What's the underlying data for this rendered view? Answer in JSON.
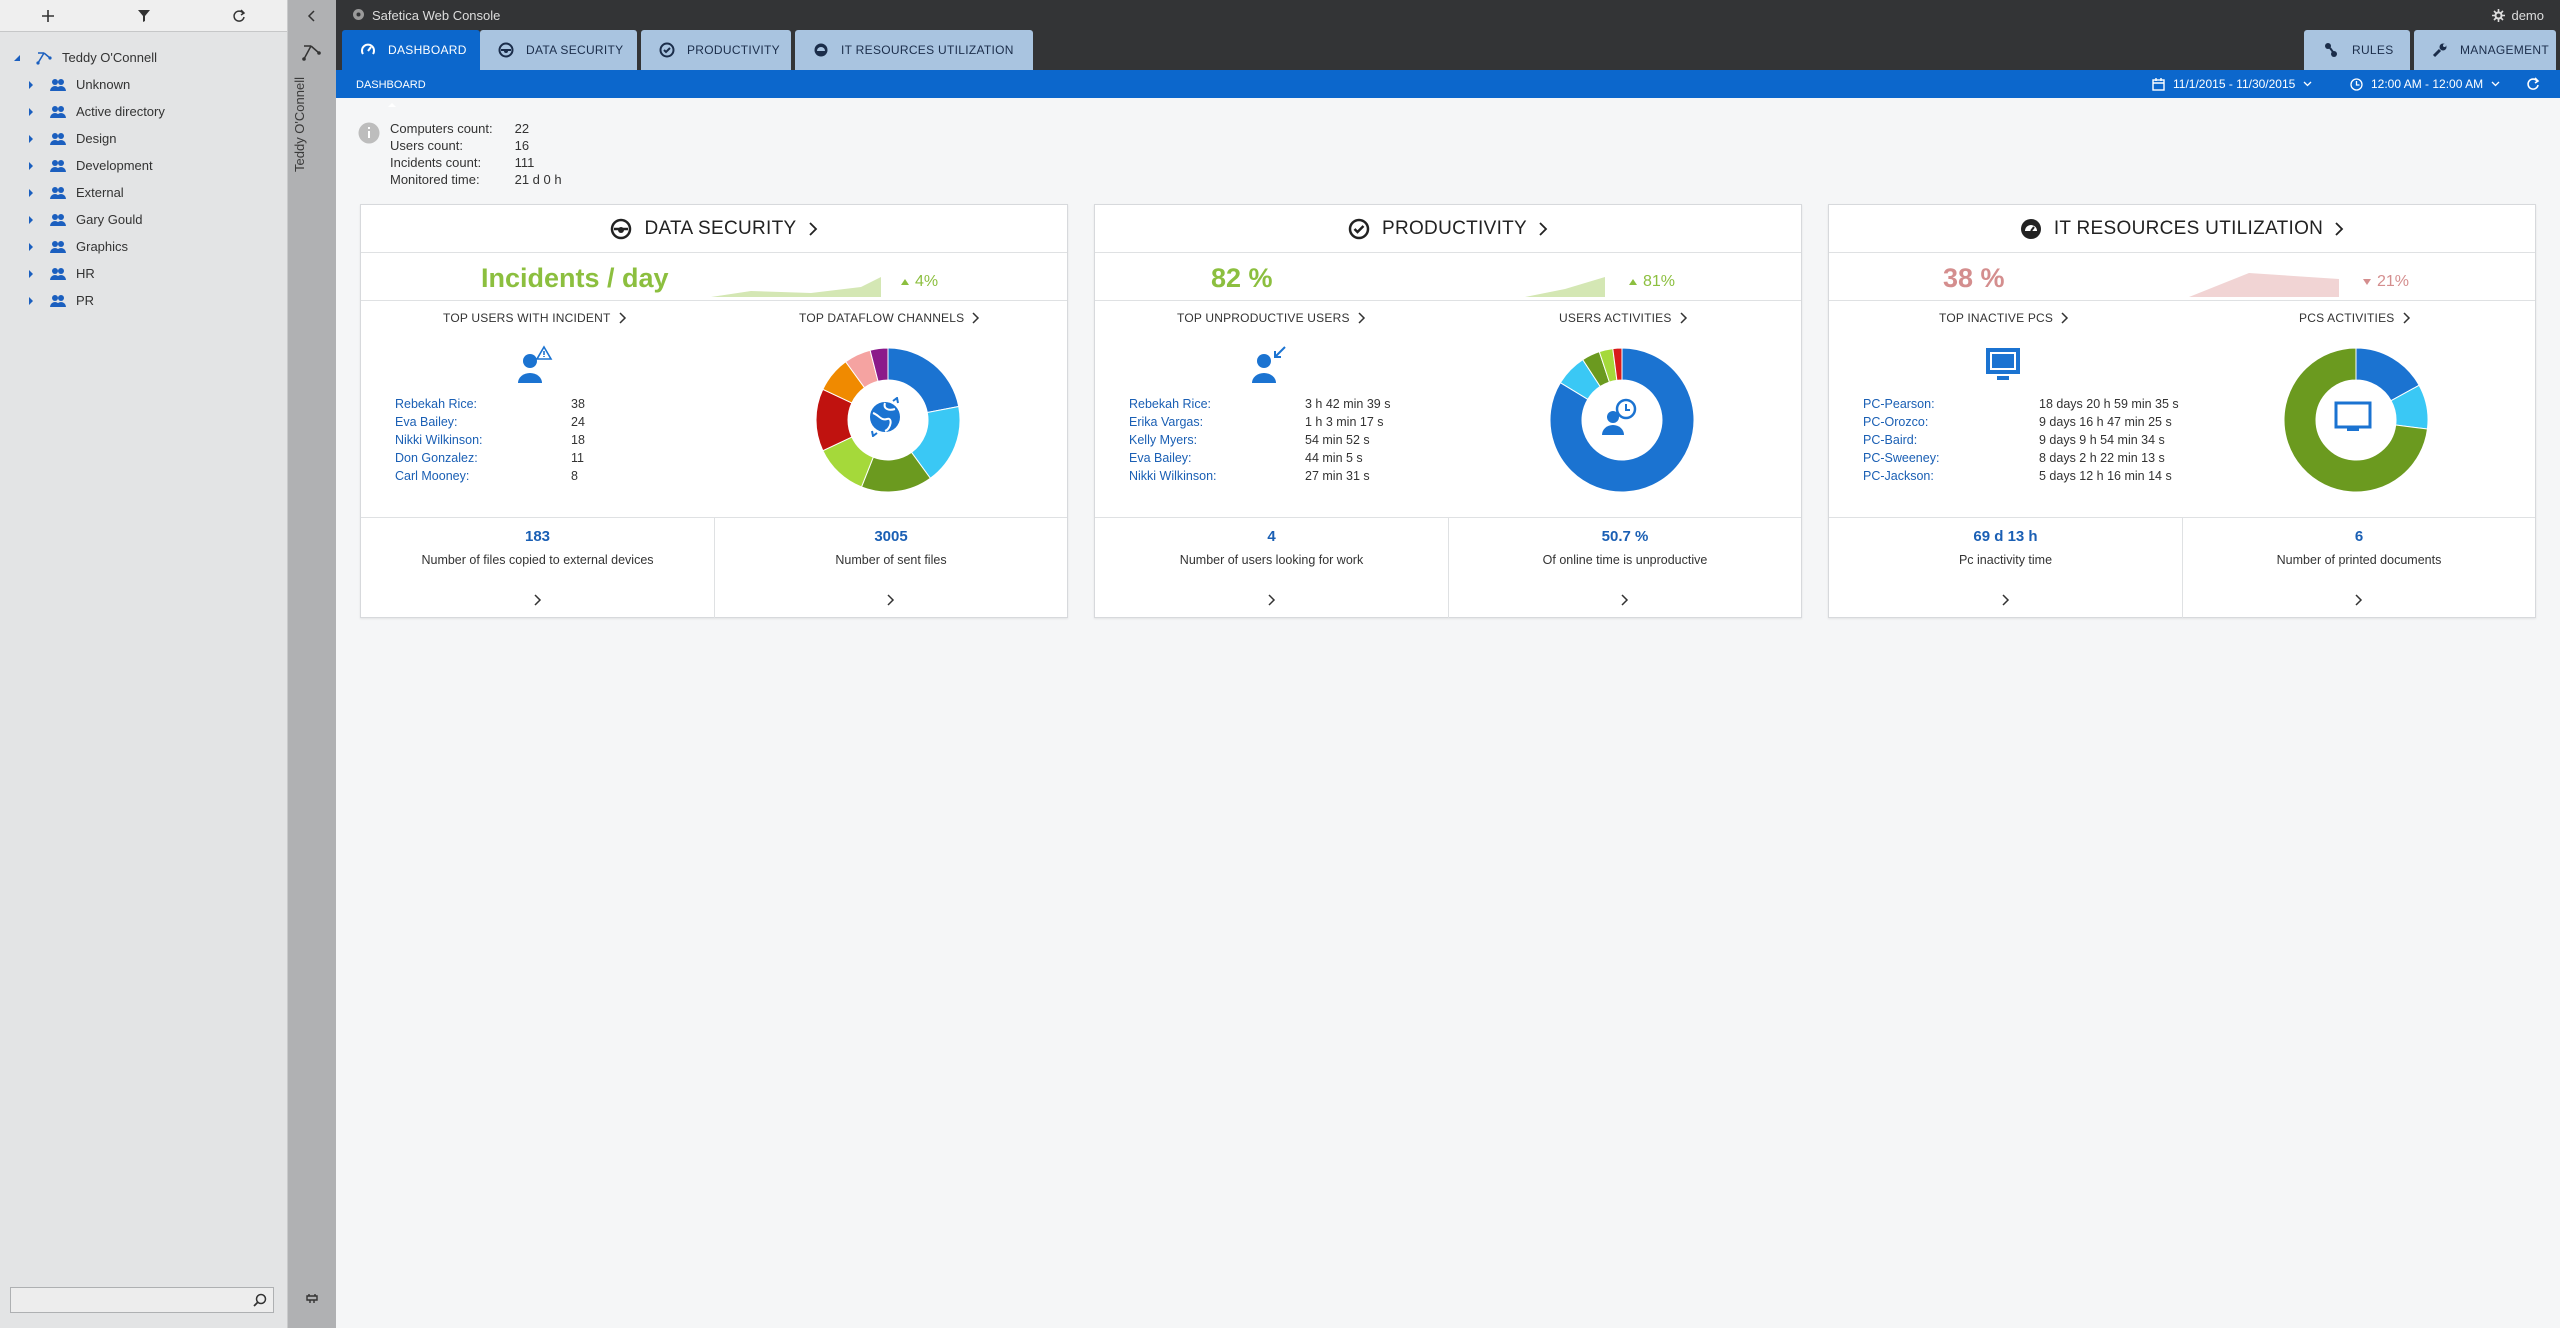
{
  "app": {
    "title": "Safetica Web Console",
    "user": "demo"
  },
  "tabs": [
    {
      "label": "DASHBOARD"
    },
    {
      "label": "DATA SECURITY"
    },
    {
      "label": "PRODUCTIVITY"
    },
    {
      "label": "IT RESOURCES UTILIZATION"
    }
  ],
  "right_tabs": [
    {
      "label": "RULES"
    },
    {
      "label": "MANAGEMENT"
    }
  ],
  "breadcrumb": "DASHBOARD",
  "date_range": "11/1/2015 - 11/30/2015",
  "time_range": "12:00 AM - 12:00 AM",
  "sidebar": {
    "root": "Teddy O'Connell",
    "items": [
      {
        "label": "Unknown"
      },
      {
        "label": "Active directory"
      },
      {
        "label": "Design"
      },
      {
        "label": "Development"
      },
      {
        "label": "External"
      },
      {
        "label": "Gary Gould"
      },
      {
        "label": "Graphics"
      },
      {
        "label": "HR"
      },
      {
        "label": "PR"
      }
    ],
    "search_placeholder": ""
  },
  "vertical_user": "Teddy O'Connell",
  "stats": [
    {
      "label": "Computers count:",
      "value": "22"
    },
    {
      "label": "Users count:",
      "value": "16"
    },
    {
      "label": "Incidents count:",
      "value": "111"
    },
    {
      "label": "Monitored time:",
      "value": "21 d 0 h"
    }
  ],
  "cards": [
    {
      "title": "DATA SECURITY",
      "kpi": "Incidents / day",
      "kpi_color": "#8cbf3f",
      "trend": "4%",
      "trend_dir": "up",
      "trend_color": "#8cbf3f",
      "left_header": "TOP USERS WITH INCIDENT",
      "right_header": "TOP DATAFLOW CHANNELS",
      "list": [
        {
          "name": "Rebekah Rice:",
          "value": "38"
        },
        {
          "name": "Eva Bailey:",
          "value": "24"
        },
        {
          "name": "Nikki Wilkinson:",
          "value": "18"
        },
        {
          "name": "Don Gonzalez:",
          "value": "11"
        },
        {
          "name": "Carl Mooney:",
          "value": "8"
        }
      ],
      "bottom_left": {
        "value": "183",
        "label": "Number of files copied to external devices"
      },
      "bottom_right": {
        "value": "3005",
        "label": "Number of sent files"
      }
    },
    {
      "title": "PRODUCTIVITY",
      "kpi": "82 %",
      "kpi_color": "#8cbf3f",
      "trend": "81%",
      "trend_dir": "up",
      "trend_color": "#8cbf3f",
      "left_header": "TOP UNPRODUCTIVE USERS",
      "right_header": "USERS ACTIVITIES",
      "list": [
        {
          "name": "Rebekah Rice:",
          "value": "3 h 42 min 39 s"
        },
        {
          "name": "Erika Vargas:",
          "value": "1 h 3 min 17 s"
        },
        {
          "name": "Kelly Myers:",
          "value": "54 min 52 s"
        },
        {
          "name": "Eva Bailey:",
          "value": "44 min 5 s"
        },
        {
          "name": "Nikki Wilkinson:",
          "value": "27 min 31 s"
        }
      ],
      "bottom_left": {
        "value": "4",
        "label": "Number of users looking for work"
      },
      "bottom_right": {
        "value": "50.7 %",
        "label": "Of online time is unproductive"
      }
    },
    {
      "title": "IT RESOURCES UTILIZATION",
      "kpi": "38 %",
      "kpi_color": "#d48e8e",
      "trend": "21%",
      "trend_dir": "down",
      "trend_color": "#d48e8e",
      "left_header": "TOP INACTIVE PCS",
      "right_header": "PCS ACTIVITIES",
      "list": [
        {
          "name": "PC-Pearson:",
          "value": "18 days 20 h 59 min 35 s"
        },
        {
          "name": "PC-Orozco:",
          "value": "9 days 16 h 47 min 25 s"
        },
        {
          "name": "PC-Baird:",
          "value": "9 days 9 h 54 min 34 s"
        },
        {
          "name": "PC-Sweeney:",
          "value": "8 days 2 h 22 min 13 s"
        },
        {
          "name": "PC-Jackson:",
          "value": "5 days 12 h 16 min 14 s"
        }
      ],
      "bottom_left": {
        "value": "69 d 13 h",
        "label": "Pc inactivity time"
      },
      "bottom_right": {
        "value": "6",
        "label": "Number of printed documents"
      }
    }
  ],
  "donuts": [
    {
      "segments": [
        {
          "value": 22,
          "color": "#1b73d1"
        },
        {
          "value": 18,
          "color": "#3ac8f5"
        },
        {
          "value": 16,
          "color": "#6b9a1f"
        },
        {
          "value": 12,
          "color": "#a5d93a"
        },
        {
          "value": 14,
          "color": "#c0120f"
        },
        {
          "value": 8,
          "color": "#f08a00"
        },
        {
          "value": 6,
          "color": "#f5a3a1"
        },
        {
          "value": 4,
          "color": "#8b1a8a"
        }
      ]
    },
    {
      "segments": [
        {
          "value": 82,
          "color": "#1b73d1"
        },
        {
          "value": 7,
          "color": "#3ac8f5"
        },
        {
          "value": 4,
          "color": "#6b9a1f"
        },
        {
          "value": 3,
          "color": "#a5d93a"
        },
        {
          "value": 2,
          "color": "#d81b1b"
        }
      ]
    },
    {
      "segments": [
        {
          "value": 17,
          "color": "#1b73d1"
        },
        {
          "value": 10,
          "color": "#3ac8f5"
        },
        {
          "value": 73,
          "color": "#6b9a1f"
        }
      ]
    }
  ]
}
